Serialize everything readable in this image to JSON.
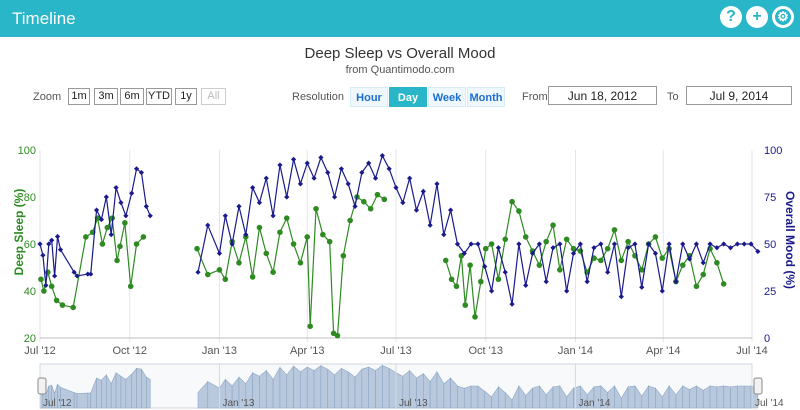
{
  "header": {
    "title": "Timeline",
    "icons": [
      "help-icon",
      "add-icon",
      "gear-icon"
    ]
  },
  "chart_title": "Deep Sleep vs Overall Mood",
  "chart_subtitle": "from Quantimodo.com",
  "controls": {
    "zoom_label": "Zoom",
    "zoom_options": [
      "1m",
      "3m",
      "6m",
      "YTD",
      "1y",
      "All"
    ],
    "resolution_label": "Resolution",
    "resolution_options": [
      "Hour",
      "Day",
      "Week",
      "Month"
    ],
    "resolution_active": "Day",
    "from_label": "From",
    "from_value": "Jun 18, 2012",
    "to_label": "To",
    "to_value": "Jul 9, 2014"
  },
  "chart_data": {
    "type": "line",
    "x_start": "2012-07-01",
    "x_end": "2014-07-01",
    "x_tick_labels": [
      "Jul '12",
      "Oct '12",
      "Jan '13",
      "Apr '13",
      "Jul '13",
      "Oct '13",
      "Jan '14",
      "Apr '14",
      "Jul '14"
    ],
    "navigator_tick_labels": [
      "Jul '12",
      "Jan '13",
      "Jul '13",
      "Jan '14",
      "Jul '14"
    ],
    "y_left": {
      "label": "Deep Sleep (%)",
      "ticks": [
        20,
        40,
        60,
        80,
        100
      ],
      "range": [
        20,
        100
      ],
      "color": "#2e8b22"
    },
    "y_right": {
      "label": "Overall Mood (%)",
      "ticks": [
        0,
        25,
        50,
        75,
        100
      ],
      "range": [
        0,
        100
      ],
      "color": "#1a1a8c"
    },
    "series": [
      {
        "name": "Deep Sleep",
        "axis": "left",
        "color": "#2e8b22",
        "points": [
          [
            "2012-07-02",
            45
          ],
          [
            "2012-07-05",
            40
          ],
          [
            "2012-07-09",
            48
          ],
          [
            "2012-07-13",
            42
          ],
          [
            "2012-07-18",
            36
          ],
          [
            "2012-07-24",
            34
          ],
          [
            "2012-08-04",
            33
          ],
          [
            "2012-08-17",
            63
          ],
          [
            "2012-08-24",
            65
          ],
          [
            "2012-08-29",
            71
          ],
          [
            "2012-09-03",
            60
          ],
          [
            "2012-09-08",
            67
          ],
          [
            "2012-09-13",
            71
          ],
          [
            "2012-09-18",
            53
          ],
          [
            "2012-09-21",
            59
          ],
          [
            "2012-09-26",
            69
          ],
          [
            "2012-10-02",
            42
          ],
          [
            "2012-10-08",
            60
          ],
          [
            "2012-10-15",
            63
          ],
          [
            "2012-12-09",
            58
          ],
          [
            "2012-12-20",
            47
          ],
          [
            "2013-01-01",
            49
          ],
          [
            "2013-01-07",
            45
          ],
          [
            "2013-01-14",
            61
          ],
          [
            "2013-01-21",
            52
          ],
          [
            "2013-01-28",
            63
          ],
          [
            "2013-02-04",
            46
          ],
          [
            "2013-02-11",
            67
          ],
          [
            "2013-02-18",
            56
          ],
          [
            "2013-02-25",
            48
          ],
          [
            "2013-03-04",
            65
          ],
          [
            "2013-03-11",
            71
          ],
          [
            "2013-03-18",
            60
          ],
          [
            "2013-03-25",
            52
          ],
          [
            "2013-04-01",
            63
          ],
          [
            "2013-04-04",
            25
          ],
          [
            "2013-04-10",
            75
          ],
          [
            "2013-04-17",
            64
          ],
          [
            "2013-04-24",
            61
          ],
          [
            "2013-04-28",
            22
          ],
          [
            "2013-05-02",
            21
          ],
          [
            "2013-05-08",
            55
          ],
          [
            "2013-05-15",
            70
          ],
          [
            "2013-05-22",
            80
          ],
          [
            "2013-05-29",
            78
          ],
          [
            "2013-06-05",
            75
          ],
          [
            "2013-06-12",
            81
          ],
          [
            "2013-06-19",
            79
          ],
          [
            "2013-08-21",
            53
          ],
          [
            "2013-08-27",
            45
          ],
          [
            "2013-09-01",
            42
          ],
          [
            "2013-09-06",
            55
          ],
          [
            "2013-09-10",
            34
          ],
          [
            "2013-09-15",
            51
          ],
          [
            "2013-09-20",
            29
          ],
          [
            "2013-09-26",
            44
          ],
          [
            "2013-10-01",
            58
          ],
          [
            "2013-10-07",
            60
          ],
          [
            "2013-10-14",
            45
          ],
          [
            "2013-10-21",
            62
          ],
          [
            "2013-10-28",
            78
          ],
          [
            "2013-11-04",
            74
          ],
          [
            "2013-11-11",
            63
          ],
          [
            "2013-11-18",
            57
          ],
          [
            "2013-11-25",
            51
          ],
          [
            "2013-12-02",
            61
          ],
          [
            "2013-12-09",
            68
          ],
          [
            "2013-12-16",
            49
          ],
          [
            "2013-12-23",
            62
          ],
          [
            "2013-12-30",
            58
          ],
          [
            "2014-01-06",
            57
          ],
          [
            "2014-01-13",
            48
          ],
          [
            "2014-01-20",
            54
          ],
          [
            "2014-01-27",
            53
          ],
          [
            "2014-02-03",
            58
          ],
          [
            "2014-02-10",
            66
          ],
          [
            "2014-02-17",
            53
          ],
          [
            "2014-02-24",
            61
          ],
          [
            "2014-03-03",
            55
          ],
          [
            "2014-03-10",
            49
          ],
          [
            "2014-03-17",
            60
          ],
          [
            "2014-03-24",
            63
          ],
          [
            "2014-03-31",
            54
          ],
          [
            "2014-04-07",
            58
          ],
          [
            "2014-04-14",
            44
          ],
          [
            "2014-04-21",
            51
          ],
          [
            "2014-04-28",
            55
          ],
          [
            "2014-05-05",
            42
          ],
          [
            "2014-05-12",
            47
          ],
          [
            "2014-05-19",
            58
          ],
          [
            "2014-05-26",
            52
          ],
          [
            "2014-06-02",
            43
          ]
        ]
      },
      {
        "name": "Overall Mood",
        "axis": "right",
        "color": "#1a1a8c",
        "points": [
          [
            "2012-07-01",
            50
          ],
          [
            "2012-07-04",
            44
          ],
          [
            "2012-07-07",
            28
          ],
          [
            "2012-07-10",
            50
          ],
          [
            "2012-07-13",
            52
          ],
          [
            "2012-07-16",
            33
          ],
          [
            "2012-07-19",
            54
          ],
          [
            "2012-07-22",
            47
          ],
          [
            "2012-08-05",
            35
          ],
          [
            "2012-08-08",
            33
          ],
          [
            "2012-08-19",
            34
          ],
          [
            "2012-08-22",
            34
          ],
          [
            "2012-08-28",
            68
          ],
          [
            "2012-09-02",
            63
          ],
          [
            "2012-09-07",
            75
          ],
          [
            "2012-09-12",
            55
          ],
          [
            "2012-09-17",
            80
          ],
          [
            "2012-09-22",
            72
          ],
          [
            "2012-09-27",
            65
          ],
          [
            "2012-10-03",
            77
          ],
          [
            "2012-10-08",
            90
          ],
          [
            "2012-10-13",
            88
          ],
          [
            "2012-10-18",
            70
          ],
          [
            "2012-10-22",
            65
          ],
          [
            "2012-12-10",
            35
          ],
          [
            "2012-12-20",
            60
          ],
          [
            "2013-01-01",
            45
          ],
          [
            "2013-01-07",
            65
          ],
          [
            "2013-01-14",
            50
          ],
          [
            "2013-01-21",
            70
          ],
          [
            "2013-01-28",
            55
          ],
          [
            "2013-02-04",
            80
          ],
          [
            "2013-02-11",
            72
          ],
          [
            "2013-02-18",
            85
          ],
          [
            "2013-02-25",
            65
          ],
          [
            "2013-03-04",
            92
          ],
          [
            "2013-03-11",
            75
          ],
          [
            "2013-03-18",
            95
          ],
          [
            "2013-03-25",
            82
          ],
          [
            "2013-04-01",
            93
          ],
          [
            "2013-04-08",
            85
          ],
          [
            "2013-04-15",
            96
          ],
          [
            "2013-04-22",
            88
          ],
          [
            "2013-04-29",
            75
          ],
          [
            "2013-05-06",
            90
          ],
          [
            "2013-05-13",
            82
          ],
          [
            "2013-05-20",
            70
          ],
          [
            "2013-05-27",
            88
          ],
          [
            "2013-06-03",
            93
          ],
          [
            "2013-06-10",
            85
          ],
          [
            "2013-06-17",
            97
          ],
          [
            "2013-06-24",
            90
          ],
          [
            "2013-07-01",
            80
          ],
          [
            "2013-07-08",
            72
          ],
          [
            "2013-07-15",
            85
          ],
          [
            "2013-07-22",
            68
          ],
          [
            "2013-07-29",
            78
          ],
          [
            "2013-08-05",
            60
          ],
          [
            "2013-08-12",
            82
          ],
          [
            "2013-08-19",
            55
          ],
          [
            "2013-08-26",
            68
          ],
          [
            "2013-09-02",
            50
          ],
          [
            "2013-09-09",
            45
          ],
          [
            "2013-09-16",
            50
          ],
          [
            "2013-09-23",
            50
          ],
          [
            "2013-09-30",
            38
          ],
          [
            "2013-10-07",
            25
          ],
          [
            "2013-10-14",
            48
          ],
          [
            "2013-10-21",
            35
          ],
          [
            "2013-10-28",
            18
          ],
          [
            "2013-11-04",
            50
          ],
          [
            "2013-11-11",
            28
          ],
          [
            "2013-11-18",
            45
          ],
          [
            "2013-11-25",
            50
          ],
          [
            "2013-12-02",
            30
          ],
          [
            "2013-12-09",
            48
          ],
          [
            "2013-12-16",
            50
          ],
          [
            "2013-12-23",
            25
          ],
          [
            "2013-12-30",
            45
          ],
          [
            "2014-01-06",
            50
          ],
          [
            "2014-01-13",
            30
          ],
          [
            "2014-01-20",
            48
          ],
          [
            "2014-01-27",
            50
          ],
          [
            "2014-02-03",
            35
          ],
          [
            "2014-02-10",
            50
          ],
          [
            "2014-02-17",
            22
          ],
          [
            "2014-02-24",
            48
          ],
          [
            "2014-03-03",
            50
          ],
          [
            "2014-03-10",
            27
          ],
          [
            "2014-03-17",
            50
          ],
          [
            "2014-03-24",
            45
          ],
          [
            "2014-03-31",
            25
          ],
          [
            "2014-04-07",
            50
          ],
          [
            "2014-04-14",
            30
          ],
          [
            "2014-04-21",
            50
          ],
          [
            "2014-04-28",
            42
          ],
          [
            "2014-05-05",
            50
          ],
          [
            "2014-05-12",
            40
          ],
          [
            "2014-05-19",
            50
          ],
          [
            "2014-05-26",
            48
          ],
          [
            "2014-06-02",
            50
          ],
          [
            "2014-06-09",
            48
          ],
          [
            "2014-06-16",
            50
          ],
          [
            "2014-06-23",
            50
          ],
          [
            "2014-06-30",
            50
          ],
          [
            "2014-07-07",
            46
          ]
        ]
      }
    ],
    "grid": "vertical at x ticks"
  }
}
